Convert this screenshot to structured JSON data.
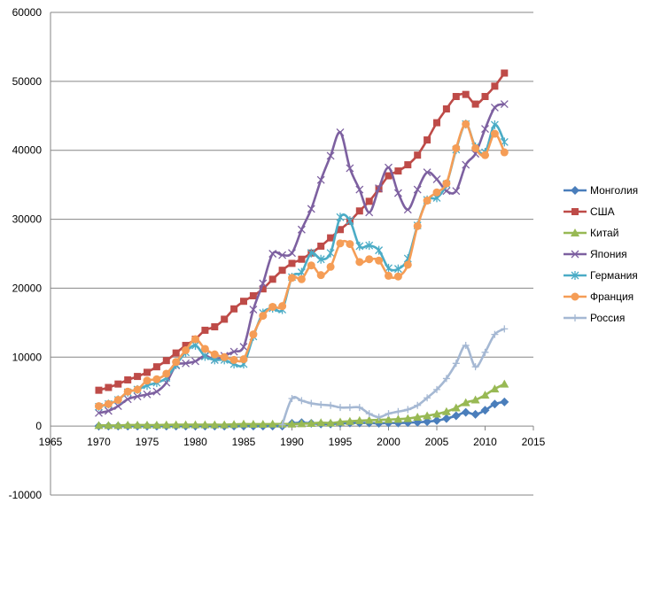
{
  "chart_data": {
    "type": "line",
    "title": "",
    "xlabel": "",
    "ylabel": "",
    "xlim": [
      1965,
      2015
    ],
    "ylim": [
      -10000,
      60000
    ],
    "x_ticks": [
      "1965",
      "1970",
      "1975",
      "1980",
      "1985",
      "1990",
      "1995",
      "2000",
      "2005",
      "2010",
      "2015"
    ],
    "y_ticks": [
      "-10000",
      "0",
      "10000",
      "20000",
      "30000",
      "40000",
      "50000",
      "60000"
    ],
    "grid": "horizontal",
    "legend_position": "right",
    "series": [
      {
        "name": "Монголия",
        "color": "#4a7ebb",
        "marker": "diamond",
        "x": [
          1970,
          1971,
          1972,
          1973,
          1974,
          1975,
          1976,
          1977,
          1978,
          1979,
          1980,
          1981,
          1982,
          1983,
          1984,
          1985,
          1986,
          1987,
          1988,
          1989,
          1990,
          1991,
          1992,
          1993,
          1994,
          1995,
          1996,
          1997,
          1998,
          1999,
          2000,
          2001,
          2002,
          2003,
          2004,
          2005,
          2006,
          2007,
          2008,
          2009,
          2010,
          2011,
          2012
        ],
        "y": [
          0,
          0,
          0,
          0,
          0,
          0,
          0,
          0,
          0,
          0,
          0,
          0,
          0,
          0,
          0,
          0,
          0,
          0,
          0,
          0,
          400,
          500,
          400,
          300,
          300,
          400,
          450,
          450,
          450,
          400,
          450,
          450,
          500,
          550,
          650,
          800,
          1100,
          1500,
          2000,
          1700,
          2300,
          3200,
          3500
        ]
      },
      {
        "name": "США",
        "color": "#be4b48",
        "marker": "square",
        "x": [
          1970,
          1971,
          1972,
          1973,
          1974,
          1975,
          1976,
          1977,
          1978,
          1979,
          1980,
          1981,
          1982,
          1983,
          1984,
          1985,
          1986,
          1987,
          1988,
          1989,
          1990,
          1991,
          1992,
          1993,
          1994,
          1995,
          1996,
          1997,
          1998,
          1999,
          2000,
          2001,
          2002,
          2003,
          2004,
          2005,
          2006,
          2007,
          2008,
          2009,
          2010,
          2011,
          2012
        ],
        "y": [
          5200,
          5600,
          6100,
          6700,
          7200,
          7800,
          8600,
          9500,
          10600,
          11700,
          12600,
          13900,
          14400,
          15500,
          17000,
          18100,
          18900,
          19900,
          21300,
          22600,
          23600,
          24200,
          25100,
          26100,
          27300,
          28500,
          29700,
          31200,
          32600,
          34400,
          36300,
          37000,
          37900,
          39300,
          41500,
          44000,
          46000,
          47800,
          48100,
          46700,
          47800,
          49300,
          51200
        ]
      },
      {
        "name": "Китай",
        "color": "#98b954",
        "marker": "triangle",
        "x": [
          1970,
          1971,
          1972,
          1973,
          1974,
          1975,
          1976,
          1977,
          1978,
          1979,
          1980,
          1981,
          1982,
          1983,
          1984,
          1985,
          1986,
          1987,
          1988,
          1989,
          1990,
          1991,
          1992,
          1993,
          1994,
          1995,
          1996,
          1997,
          1998,
          1999,
          2000,
          2001,
          2002,
          2003,
          2004,
          2005,
          2006,
          2007,
          2008,
          2009,
          2010,
          2011,
          2012
        ],
        "y": [
          100,
          100,
          100,
          150,
          150,
          150,
          150,
          180,
          200,
          200,
          200,
          200,
          200,
          200,
          250,
          300,
          280,
          280,
          300,
          300,
          300,
          350,
          400,
          500,
          450,
          600,
          700,
          800,
          850,
          900,
          950,
          1000,
          1100,
          1300,
          1500,
          1750,
          2100,
          2650,
          3400,
          3800,
          4500,
          5400,
          6100
        ]
      },
      {
        "name": "Япония",
        "color": "#7d60a0",
        "marker": "x",
        "x": [
          1970,
          1971,
          1972,
          1973,
          1974,
          1975,
          1976,
          1977,
          1978,
          1979,
          1980,
          1981,
          1982,
          1983,
          1984,
          1985,
          1986,
          1987,
          1988,
          1989,
          1990,
          1991,
          1992,
          1993,
          1994,
          1995,
          1996,
          1997,
          1998,
          1999,
          2000,
          2001,
          2002,
          2003,
          2004,
          2005,
          2006,
          2007,
          2008,
          2009,
          2010,
          2011,
          2012
        ],
        "y": [
          1900,
          2200,
          2900,
          3900,
          4300,
          4600,
          5000,
          6300,
          8800,
          9100,
          9400,
          10200,
          9600,
          10200,
          10800,
          11500,
          16900,
          20700,
          25000,
          24800,
          25100,
          28500,
          31500,
          35700,
          39200,
          42600,
          37400,
          34300,
          31000,
          34500,
          37500,
          33800,
          31400,
          34300,
          36800,
          35800,
          34100,
          34100,
          37900,
          39500,
          43100,
          46200,
          46700
        ]
      },
      {
        "name": "Германия",
        "color": "#4bacc6",
        "marker": "asterisk",
        "x": [
          1970,
          1971,
          1972,
          1973,
          1974,
          1975,
          1976,
          1977,
          1978,
          1979,
          1980,
          1981,
          1982,
          1983,
          1984,
          1985,
          1986,
          1987,
          1988,
          1989,
          1990,
          1991,
          1992,
          1993,
          1994,
          1995,
          1996,
          1997,
          1998,
          1999,
          2000,
          2001,
          2002,
          2003,
          2004,
          2005,
          2006,
          2007,
          2008,
          2009,
          2010,
          2011,
          2012
        ],
        "y": [
          2800,
          3200,
          3800,
          4900,
          5300,
          5900,
          6300,
          7000,
          8900,
          10700,
          11700,
          10100,
          9600,
          9600,
          9000,
          9000,
          13000,
          16400,
          17100,
          16900,
          21600,
          22300,
          25100,
          24200,
          25100,
          30300,
          29800,
          26100,
          26200,
          25500,
          22900,
          22800,
          24300,
          29100,
          32800,
          33100,
          35100,
          40100,
          43800,
          40500,
          39700,
          43700,
          41200
        ]
      },
      {
        "name": "Франция",
        "color": "#f59d56",
        "marker": "circle",
        "x": [
          1970,
          1971,
          1972,
          1973,
          1974,
          1975,
          1976,
          1977,
          1978,
          1979,
          1980,
          1981,
          1982,
          1983,
          1984,
          1985,
          1986,
          1987,
          1988,
          1989,
          1990,
          1991,
          1992,
          1993,
          1994,
          1995,
          1996,
          1997,
          1998,
          1999,
          2000,
          2001,
          2002,
          2003,
          2004,
          2005,
          2006,
          2007,
          2008,
          2009,
          2010,
          2011,
          2012
        ],
        "y": [
          2900,
          3200,
          3800,
          5000,
          5300,
          6600,
          6800,
          7600,
          9300,
          11000,
          12600,
          11200,
          10400,
          10000,
          9600,
          9700,
          13300,
          16000,
          17300,
          17400,
          21500,
          21300,
          23300,
          21900,
          23100,
          26500,
          26400,
          23800,
          24200,
          24000,
          21800,
          21700,
          23400,
          29000,
          32700,
          33900,
          35200,
          40300,
          43800,
          40300,
          39300,
          42400,
          39700
        ]
      },
      {
        "name": "Россия",
        "color": "#a5b8d3",
        "marker": "plus",
        "x": [
          1989,
          1990,
          1991,
          1992,
          1993,
          1994,
          1995,
          1996,
          1997,
          1998,
          1999,
          2000,
          2001,
          2002,
          2003,
          2004,
          2005,
          2006,
          2007,
          2008,
          2009,
          2010,
          2011,
          2012
        ],
        "y": [
          200,
          4000,
          3700,
          3300,
          3100,
          3000,
          2700,
          2700,
          2700,
          1800,
          1300,
          1800,
          2100,
          2400,
          3000,
          4100,
          5300,
          6900,
          9100,
          11700,
          8600,
          10700,
          13300,
          14100
        ]
      }
    ]
  }
}
